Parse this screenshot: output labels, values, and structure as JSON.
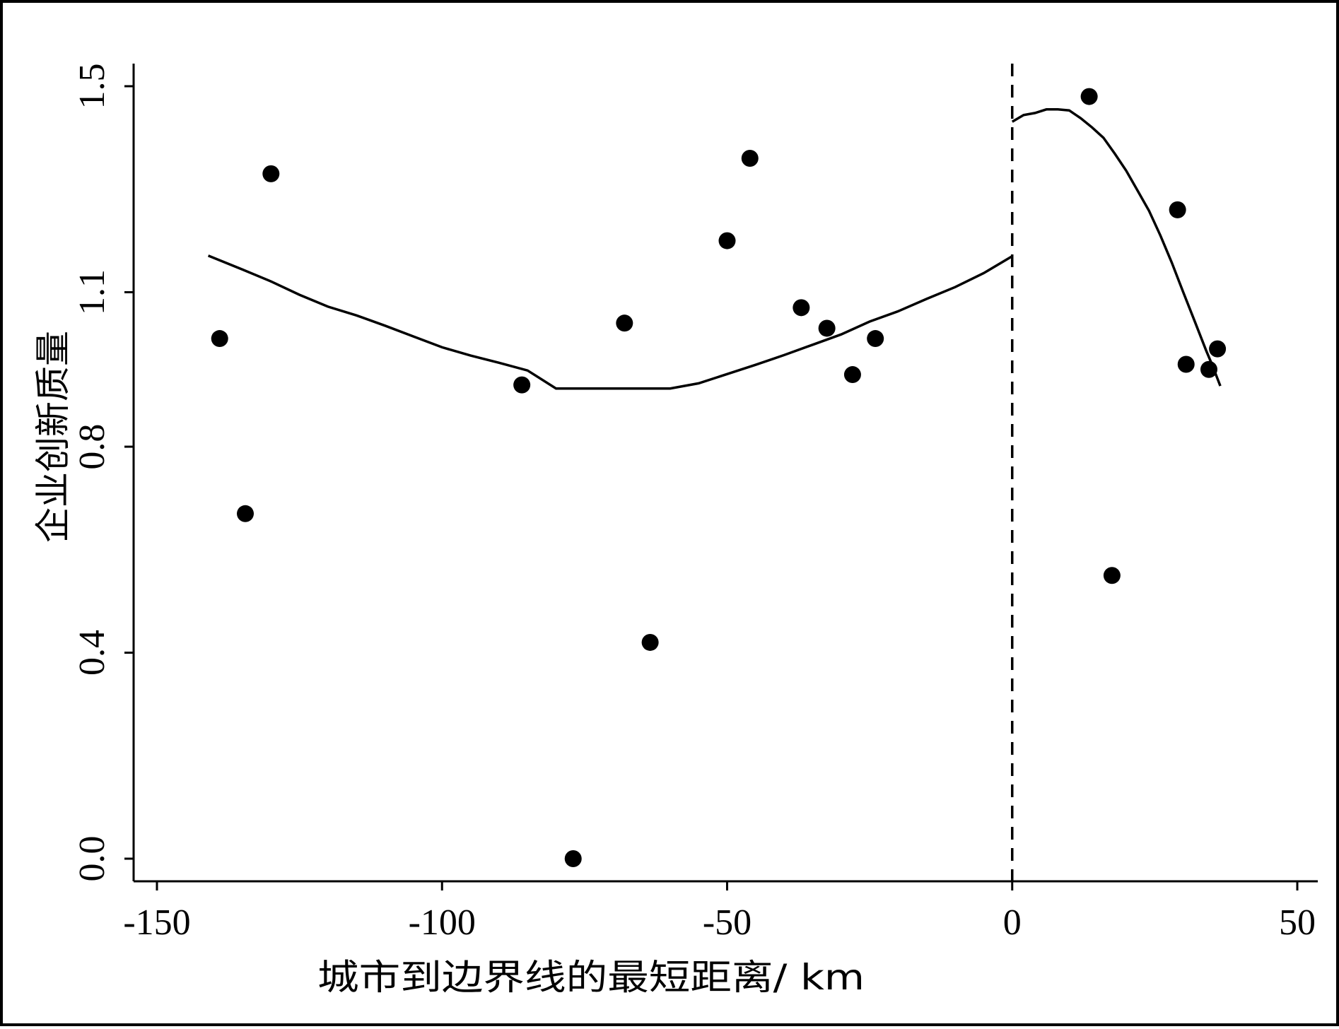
{
  "chart_data": {
    "type": "scatter",
    "xlabel": "城市到边界线的最短距离/ km",
    "ylabel": "企业创新质量",
    "xlim": [
      -150,
      50
    ],
    "ylim": [
      0,
      1.5
    ],
    "x_ticks": [
      "-150",
      "-100",
      "-50",
      "0",
      "50"
    ],
    "y_ticks": [
      "0.0",
      "0.4",
      "0.8",
      "1.1",
      "1.5"
    ],
    "y_tick_values": [
      0.0,
      0.4,
      0.8,
      1.1,
      1.5
    ],
    "x_tick_values": [
      -150,
      -100,
      -50,
      0,
      50
    ],
    "cutoff": 0,
    "grid": false,
    "points": [
      {
        "x": -139,
        "y": 1.01
      },
      {
        "x": -134.5,
        "y": 0.67
      },
      {
        "x": -130,
        "y": 1.33
      },
      {
        "x": -86,
        "y": 0.92
      },
      {
        "x": -77,
        "y": 0.0
      },
      {
        "x": -68,
        "y": 1.04
      },
      {
        "x": -63.5,
        "y": 0.42
      },
      {
        "x": -50,
        "y": 1.2
      },
      {
        "x": -46,
        "y": 1.36
      },
      {
        "x": -37,
        "y": 1.07
      },
      {
        "x": -32.5,
        "y": 1.03
      },
      {
        "x": -28,
        "y": 0.94
      },
      {
        "x": -24,
        "y": 1.01
      },
      {
        "x": 13.5,
        "y": 1.48
      },
      {
        "x": 17.5,
        "y": 0.55
      },
      {
        "x": 29,
        "y": 1.26
      },
      {
        "x": 30.5,
        "y": 0.96
      },
      {
        "x": 34.5,
        "y": 0.95
      },
      {
        "x": 36,
        "y": 0.99
      }
    ],
    "fit_left": {
      "x": [
        -141,
        -135,
        -130,
        -125,
        -120,
        -115,
        -110,
        -105,
        -100,
        -95,
        -90,
        -85,
        -80,
        -75,
        -70,
        -65,
        -60,
        -55,
        -50,
        -45,
        -40,
        -35,
        -30,
        -25,
        -20,
        -15,
        -10,
        -5,
        0
      ],
      "y": [
        1.171,
        1.144,
        1.121,
        1.095,
        1.072,
        1.055,
        1.035,
        1.014,
        0.993,
        0.977,
        0.963,
        0.948,
        0.913,
        0.913,
        0.913,
        0.913,
        0.913,
        0.923,
        0.941,
        0.959,
        0.978,
        0.998,
        1.018,
        1.043,
        1.063,
        1.087,
        1.11,
        1.137,
        1.17
      ]
    },
    "fit_right": {
      "x": [
        0,
        2,
        4,
        6,
        8,
        10,
        12,
        14,
        16,
        18,
        20,
        22,
        24,
        26,
        28,
        30,
        32,
        34,
        35,
        36.5
      ],
      "y": [
        1.431,
        1.444,
        1.448,
        1.455,
        1.455,
        1.453,
        1.438,
        1.42,
        1.4,
        1.369,
        1.336,
        1.297,
        1.258,
        1.21,
        1.157,
        1.1,
        1.044,
        0.987,
        0.961,
        0.918
      ]
    }
  }
}
